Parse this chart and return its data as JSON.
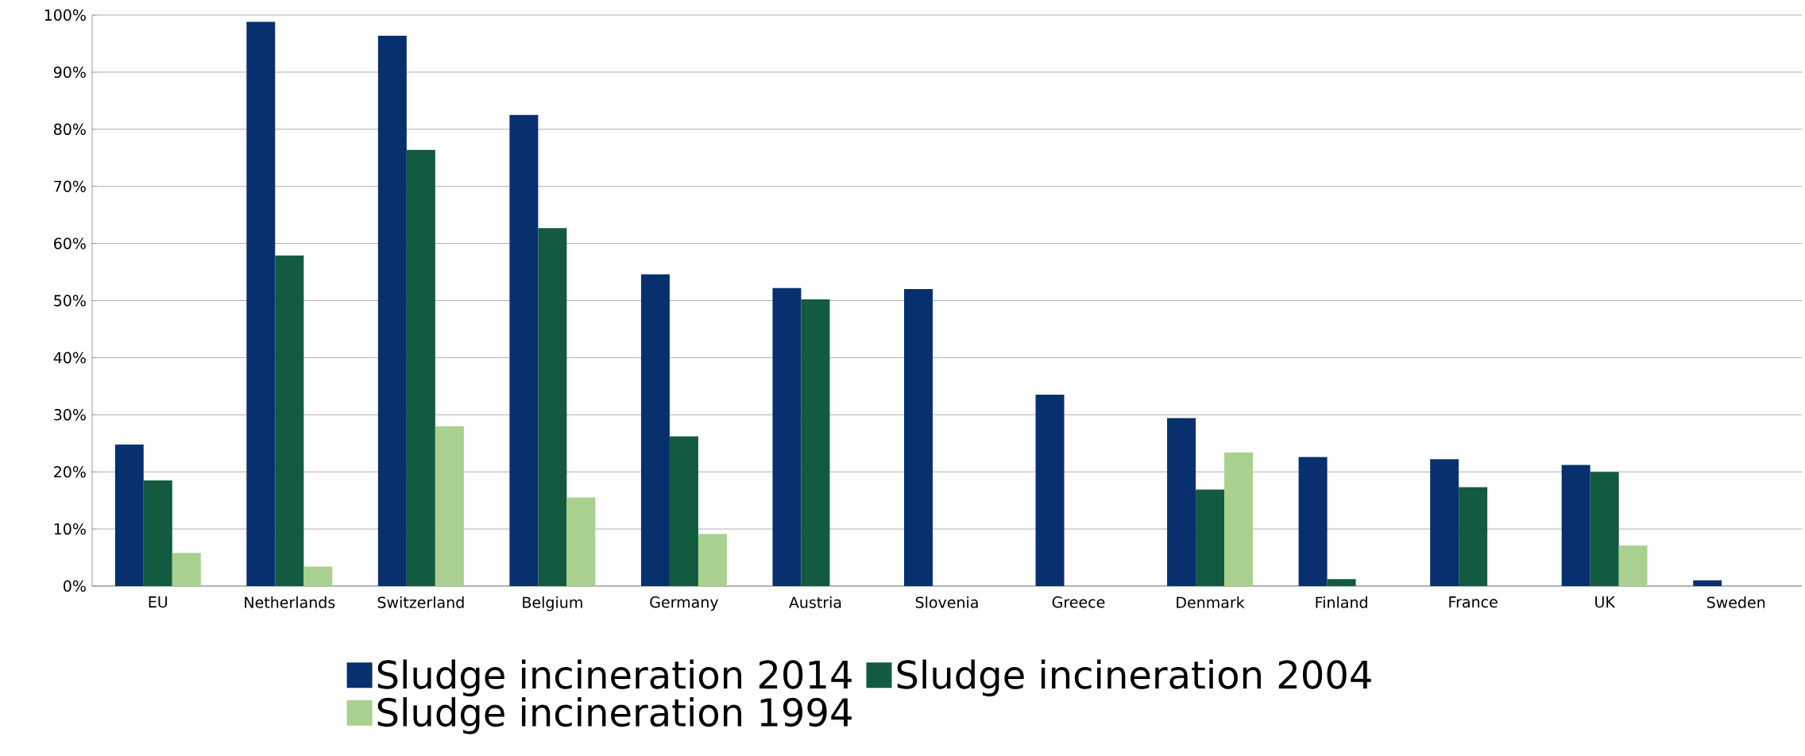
{
  "chart_data": {
    "type": "bar",
    "categories": [
      "EU",
      "Netherlands",
      "Switzerland",
      "Belgium",
      "Germany",
      "Austria",
      "Slovenia",
      "Greece",
      "Denmark",
      "Finland",
      "France",
      "UK",
      "Sweden"
    ],
    "series": [
      {
        "name": "Sludge incineration 2014",
        "color": "#08306e",
        "values": [
          24.8,
          98.8,
          96.4,
          82.5,
          54.6,
          52.2,
          52.0,
          33.5,
          29.4,
          22.6,
          22.2,
          21.2,
          1.0
        ]
      },
      {
        "name": "Sludge incineration 2004",
        "color": "#125a40",
        "values": [
          18.5,
          57.9,
          76.4,
          62.7,
          26.2,
          50.2,
          null,
          null,
          16.9,
          1.2,
          17.3,
          20.0,
          null
        ]
      },
      {
        "name": "Sludge incineration 1994",
        "color": "#a9d08e",
        "values": [
          5.8,
          3.4,
          28.0,
          15.5,
          9.1,
          null,
          null,
          null,
          23.4,
          null,
          null,
          7.1,
          null
        ]
      }
    ],
    "ylim": [
      0,
      100
    ],
    "yticks": [
      {
        "value": 0,
        "label": "0%"
      },
      {
        "value": 10,
        "label": "10%"
      },
      {
        "value": 20,
        "label": "20%"
      },
      {
        "value": 30,
        "label": "30%"
      },
      {
        "value": 40,
        "label": "40%"
      },
      {
        "value": 50,
        "label": "50%"
      },
      {
        "value": 60,
        "label": "60%"
      },
      {
        "value": 70,
        "label": "70%"
      },
      {
        "value": 80,
        "label": "80%"
      },
      {
        "value": 90,
        "label": "90%"
      },
      {
        "value": 100,
        "label": "100%"
      }
    ],
    "grid": "y",
    "legend": "bottom"
  }
}
